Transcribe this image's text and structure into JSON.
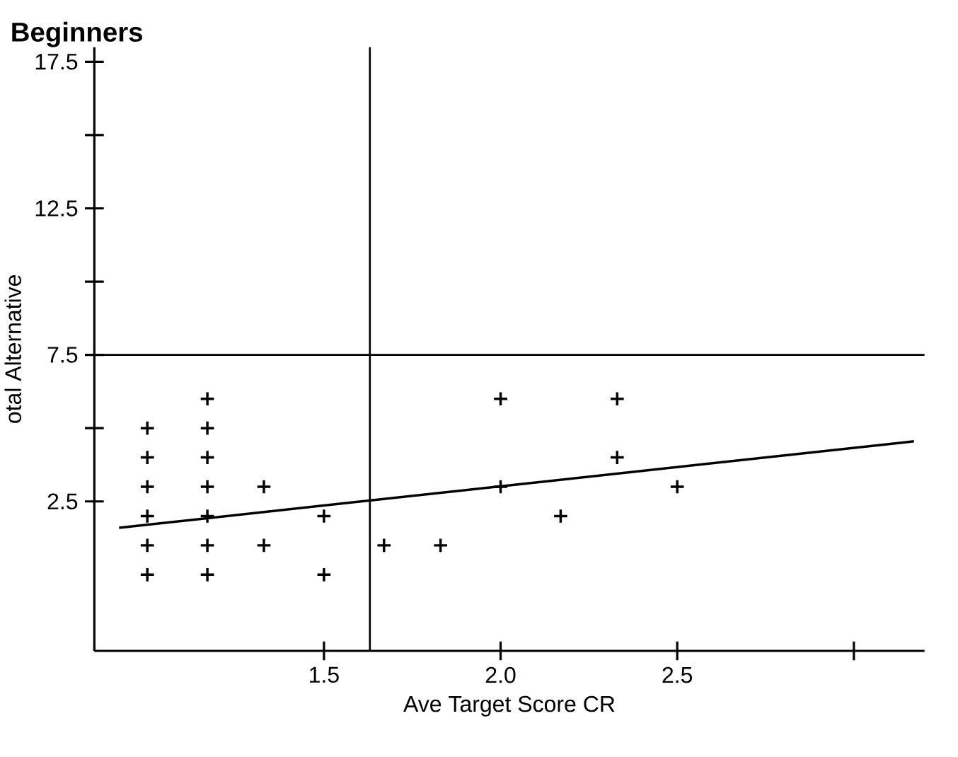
{
  "chart_data": {
    "type": "scatter",
    "title": "Beginners",
    "xlabel": "Ave Target Score CR",
    "ylabel": "otal Alternative",
    "xlim": [
      0.85,
      3.2
    ],
    "ylim": [
      -2.6,
      18
    ],
    "xticks": [
      1.5,
      {
        "value": 2,
        "label": "2.0"
      },
      2.5,
      {
        "value": 3,
        "label": null
      }
    ],
    "yticks": [
      2.5,
      {
        "value": 5,
        "label": null
      },
      7.5,
      {
        "value": 10,
        "label": null
      },
      12.5,
      {
        "value": 15,
        "label": null
      },
      17.5
    ],
    "marker": "cross",
    "grid": false,
    "ref_lines": [
      {
        "axis": "x",
        "value": 1.63,
        "color": "#000000"
      },
      {
        "axis": "y",
        "value": 7.5,
        "color": "#000000"
      }
    ],
    "series": [
      {
        "color": "#000000",
        "x": [
          1.0,
          1.0,
          1.0,
          1.0,
          1.0,
          1.0,
          1.17,
          1.17,
          1.17,
          1.17,
          1.17,
          1.17,
          1.17,
          1.33,
          1.33,
          1.5,
          1.5,
          1.67,
          1.83,
          2.0,
          2.0,
          2.17,
          2.33,
          2.33,
          2.5
        ],
        "values": [
          5,
          4,
          3,
          2,
          1,
          0,
          6,
          5,
          4,
          3,
          2,
          1,
          0,
          3,
          1,
          2,
          0,
          1,
          1,
          6,
          3,
          2,
          6,
          4,
          3
        ]
      },
      {
        "type": "line",
        "marker": "none",
        "color": "#000000",
        "x": [
          0.92,
          3.17
        ],
        "values": [
          1.6,
          4.55
        ]
      }
    ]
  }
}
